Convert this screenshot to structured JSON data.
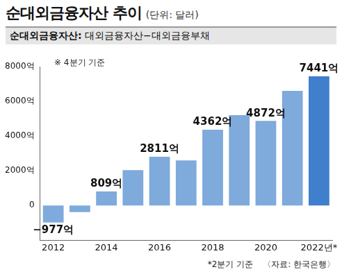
{
  "chart_data": {
    "type": "bar",
    "title": "순대외금융자산 추이",
    "subtitle": "(단위: 달러)",
    "definition_label": "순대외금융자산:",
    "definition": "대외금융자산−대외금융부채",
    "annotations": [
      "※ 4분기 기준",
      "*2분기 기준"
    ],
    "source": "〈자료: 한국은행〉",
    "categories": [
      "2012",
      null,
      "2014",
      null,
      "2016",
      null,
      "2018",
      null,
      "2020",
      null,
      "2022년*"
    ],
    "values": [
      -977,
      -380,
      809,
      2044,
      2811,
      2598,
      4362,
      5200,
      4872,
      6600,
      7441
    ],
    "value_labels": [
      "−977억",
      null,
      "809억",
      null,
      "2811억",
      null,
      "4362억",
      null,
      "4872억",
      null,
      "7441억"
    ],
    "colors": [
      "#7eaadc",
      "#7eaadc",
      "#7eaadc",
      "#7eaadc",
      "#7eaadc",
      "#7eaadc",
      "#7eaadc",
      "#7eaadc",
      "#7eaadc",
      "#7eaadc",
      "#3f7fcb"
    ],
    "ylim": [
      -2000,
      8000
    ],
    "yticks": [
      0,
      {
        "value": 2000,
        "label": "2000억"
      },
      {
        "value": 4000,
        "label": "4000억"
      },
      {
        "value": 6000,
        "label": "6000억"
      },
      {
        "value": 8000,
        "label": "8000억"
      }
    ],
    "grid": false,
    "data_labels": true
  }
}
